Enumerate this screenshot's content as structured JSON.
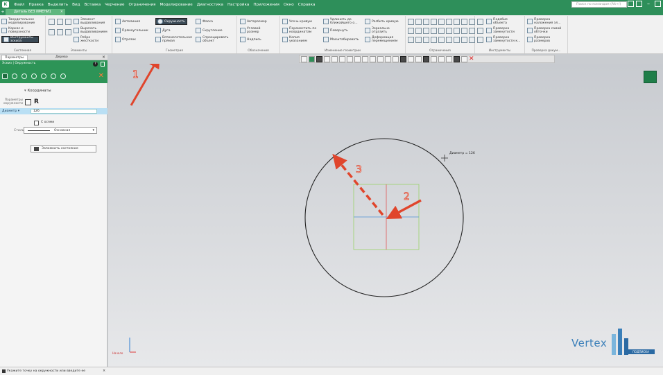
{
  "menu": {
    "items": [
      "Файл",
      "Правка",
      "Выделить",
      "Вид",
      "Вставка",
      "Черчение",
      "Ограничения",
      "Моделирование",
      "Диагностика",
      "Настройка",
      "Приложения",
      "Окно",
      "Справка"
    ],
    "search_placeholder": "Поиск по командам (Alt+/)"
  },
  "tab": {
    "title": "Деталь БЕЗ ИМЕНИ1",
    "close": "×",
    "add": "+"
  },
  "ribbon": {
    "g1": {
      "items": [
        "Твердотельное моделирование",
        "Каркас и поверхности",
        "Инструменты эскиза"
      ],
      "caption": "Системная"
    },
    "g2": {
      "items": [
        "Элемент выдавливания",
        "Вырезать выдавливанием",
        "Ребро жесткости"
      ],
      "caption": "Элементы"
    },
    "g3": {
      "items": [
        "Автолиния",
        "Прямоугольник",
        "Отрезок",
        "Окружность",
        "Дуга",
        "Вспомогательная прямая",
        "Фаска",
        "Скругление",
        "Спроецировать объект"
      ],
      "caption": "Геометрия"
    },
    "g4": {
      "items": [
        "Авторазмер",
        "Угловой размер",
        "Надпись"
      ],
      "caption": "Обозначения"
    },
    "g5": {
      "items": [
        "Усечь кривую",
        "Удлинить до ближайшего о...",
        "Разбить кривую",
        "Переместить по координатам",
        "Повернуть",
        "Зеркально отразить",
        "Копия указанием",
        "Масштабировать",
        "Деформация перемещением"
      ],
      "caption": "Изменение геометрии"
    },
    "g6": {
      "caption": "Ограничения"
    },
    "g7": {
      "items": [
        "Подобие объекта",
        "Проверка замкнутости",
        "Проверка замкнутости к..."
      ],
      "caption": "Инструменты"
    },
    "g8": {
      "items": [
        "Проверка наложения эл...",
        "Проверка самой обточки",
        "Проверка размеров"
      ],
      "caption": "Проверка докум..."
    }
  },
  "panel": {
    "tabs": [
      "Параметры",
      "Дерево"
    ],
    "title": "Эскиз | Окружность",
    "help": "?",
    "stop": "✕",
    "section": "Координаты",
    "ref_label": "Параметры окружности",
    "radius_glyph": "R",
    "diameter_label": "Диаметр",
    "diameter_value": "126",
    "axis_label": "С осями",
    "style_label": "Стиль",
    "style_value": "Основная",
    "save_label": "Запомнить состояние"
  },
  "canvas": {
    "dimension_label": "Диаметр = 126",
    "annotations": [
      "1",
      "2",
      "3"
    ],
    "axis_label": "Начало",
    "logo_text": "Vertex",
    "logo_sub": "ПОДПИСКА"
  },
  "status": {
    "text": "Укажите точку на окружности или введите ее",
    "close": "×"
  },
  "colors": {
    "accent": "#2e8f5a",
    "arrow": "#e0452c",
    "circle": "#222222",
    "selection_axis": "#4d8fd6"
  }
}
